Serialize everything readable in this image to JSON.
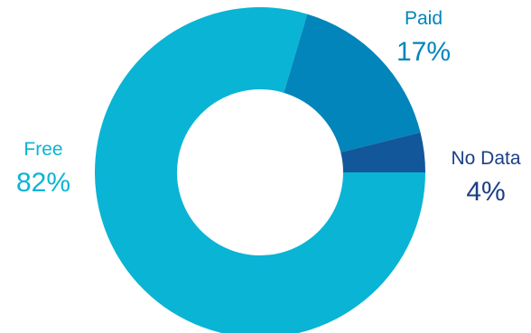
{
  "chart_data": {
    "type": "pie",
    "variant": "donut",
    "title": "",
    "slices": [
      {
        "label": "Free",
        "value": 82,
        "display": "82%",
        "color": "#0ab4d4",
        "label_color": "#0ab4d4"
      },
      {
        "label": "Paid",
        "value": 17,
        "display": "17%",
        "color": "#0185bb",
        "label_color": "#0185bb"
      },
      {
        "label": "No Data",
        "value": 4,
        "display": "4%",
        "color": "#12579a",
        "label_color": "#1b3f86"
      }
    ]
  }
}
